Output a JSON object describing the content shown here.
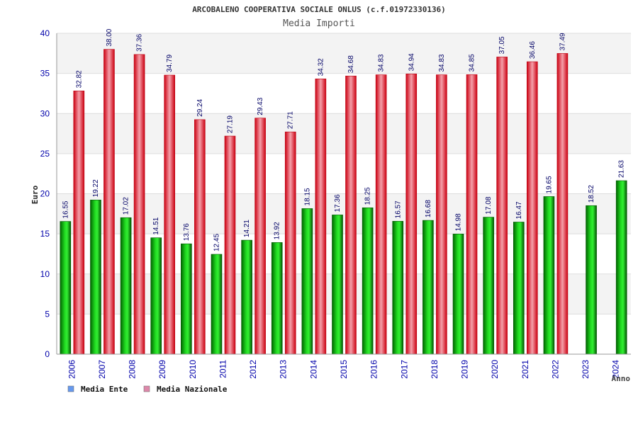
{
  "chart_data": {
    "type": "bar",
    "title": "ARCOBALENO COOPERATIVA SOCIALE ONLUS (c.f.01972330136)",
    "subtitle": "Media Importi",
    "xlabel": "Anno",
    "ylabel": "Euro",
    "ylim": [
      0,
      40
    ],
    "yticks": [
      "0",
      "5",
      "10",
      "15",
      "20",
      "25",
      "30",
      "35",
      "40"
    ],
    "categories": [
      "2006",
      "2007",
      "2008",
      "2009",
      "2010",
      "2011",
      "2012",
      "2013",
      "2014",
      "2015",
      "2016",
      "2017",
      "2018",
      "2019",
      "2020",
      "2021",
      "2022",
      "2023",
      "2024"
    ],
    "series": [
      {
        "name": "Media Ente",
        "values": [
          16.55,
          19.22,
          17.02,
          14.51,
          13.76,
          12.45,
          14.21,
          13.92,
          18.15,
          17.36,
          18.25,
          16.57,
          16.68,
          14.98,
          17.08,
          16.47,
          19.65,
          18.52,
          21.63
        ],
        "labels": [
          "16.55",
          "19.22",
          "17.02",
          "14.51",
          "13.76",
          "12.45",
          "14.21",
          "13.92",
          "18.15",
          "17.36",
          "18.25",
          "16.57",
          "16.68",
          "14.98",
          "17.08",
          "16.47",
          "19.65",
          "18.52",
          "21.63"
        ],
        "color": "#00aa00",
        "legend_color": "#6699ee"
      },
      {
        "name": "Media Nazionale",
        "values": [
          32.82,
          38.0,
          37.36,
          34.79,
          29.24,
          27.19,
          29.43,
          27.71,
          34.32,
          34.68,
          34.83,
          34.94,
          34.83,
          34.85,
          37.05,
          36.46,
          37.49,
          null,
          null
        ],
        "labels": [
          "32.82",
          "38.00",
          "37.36",
          "34.79",
          "29.24",
          "27.19",
          "29.43",
          "27.71",
          "34.32",
          "34.68",
          "34.83",
          "34.94",
          "34.83",
          "34.85",
          "37.05",
          "36.46",
          "37.49",
          null,
          null
        ],
        "color": "#ee2233",
        "legend_color": "#dd88aa"
      }
    ],
    "grid": true,
    "legend_position": "bottom-left"
  }
}
